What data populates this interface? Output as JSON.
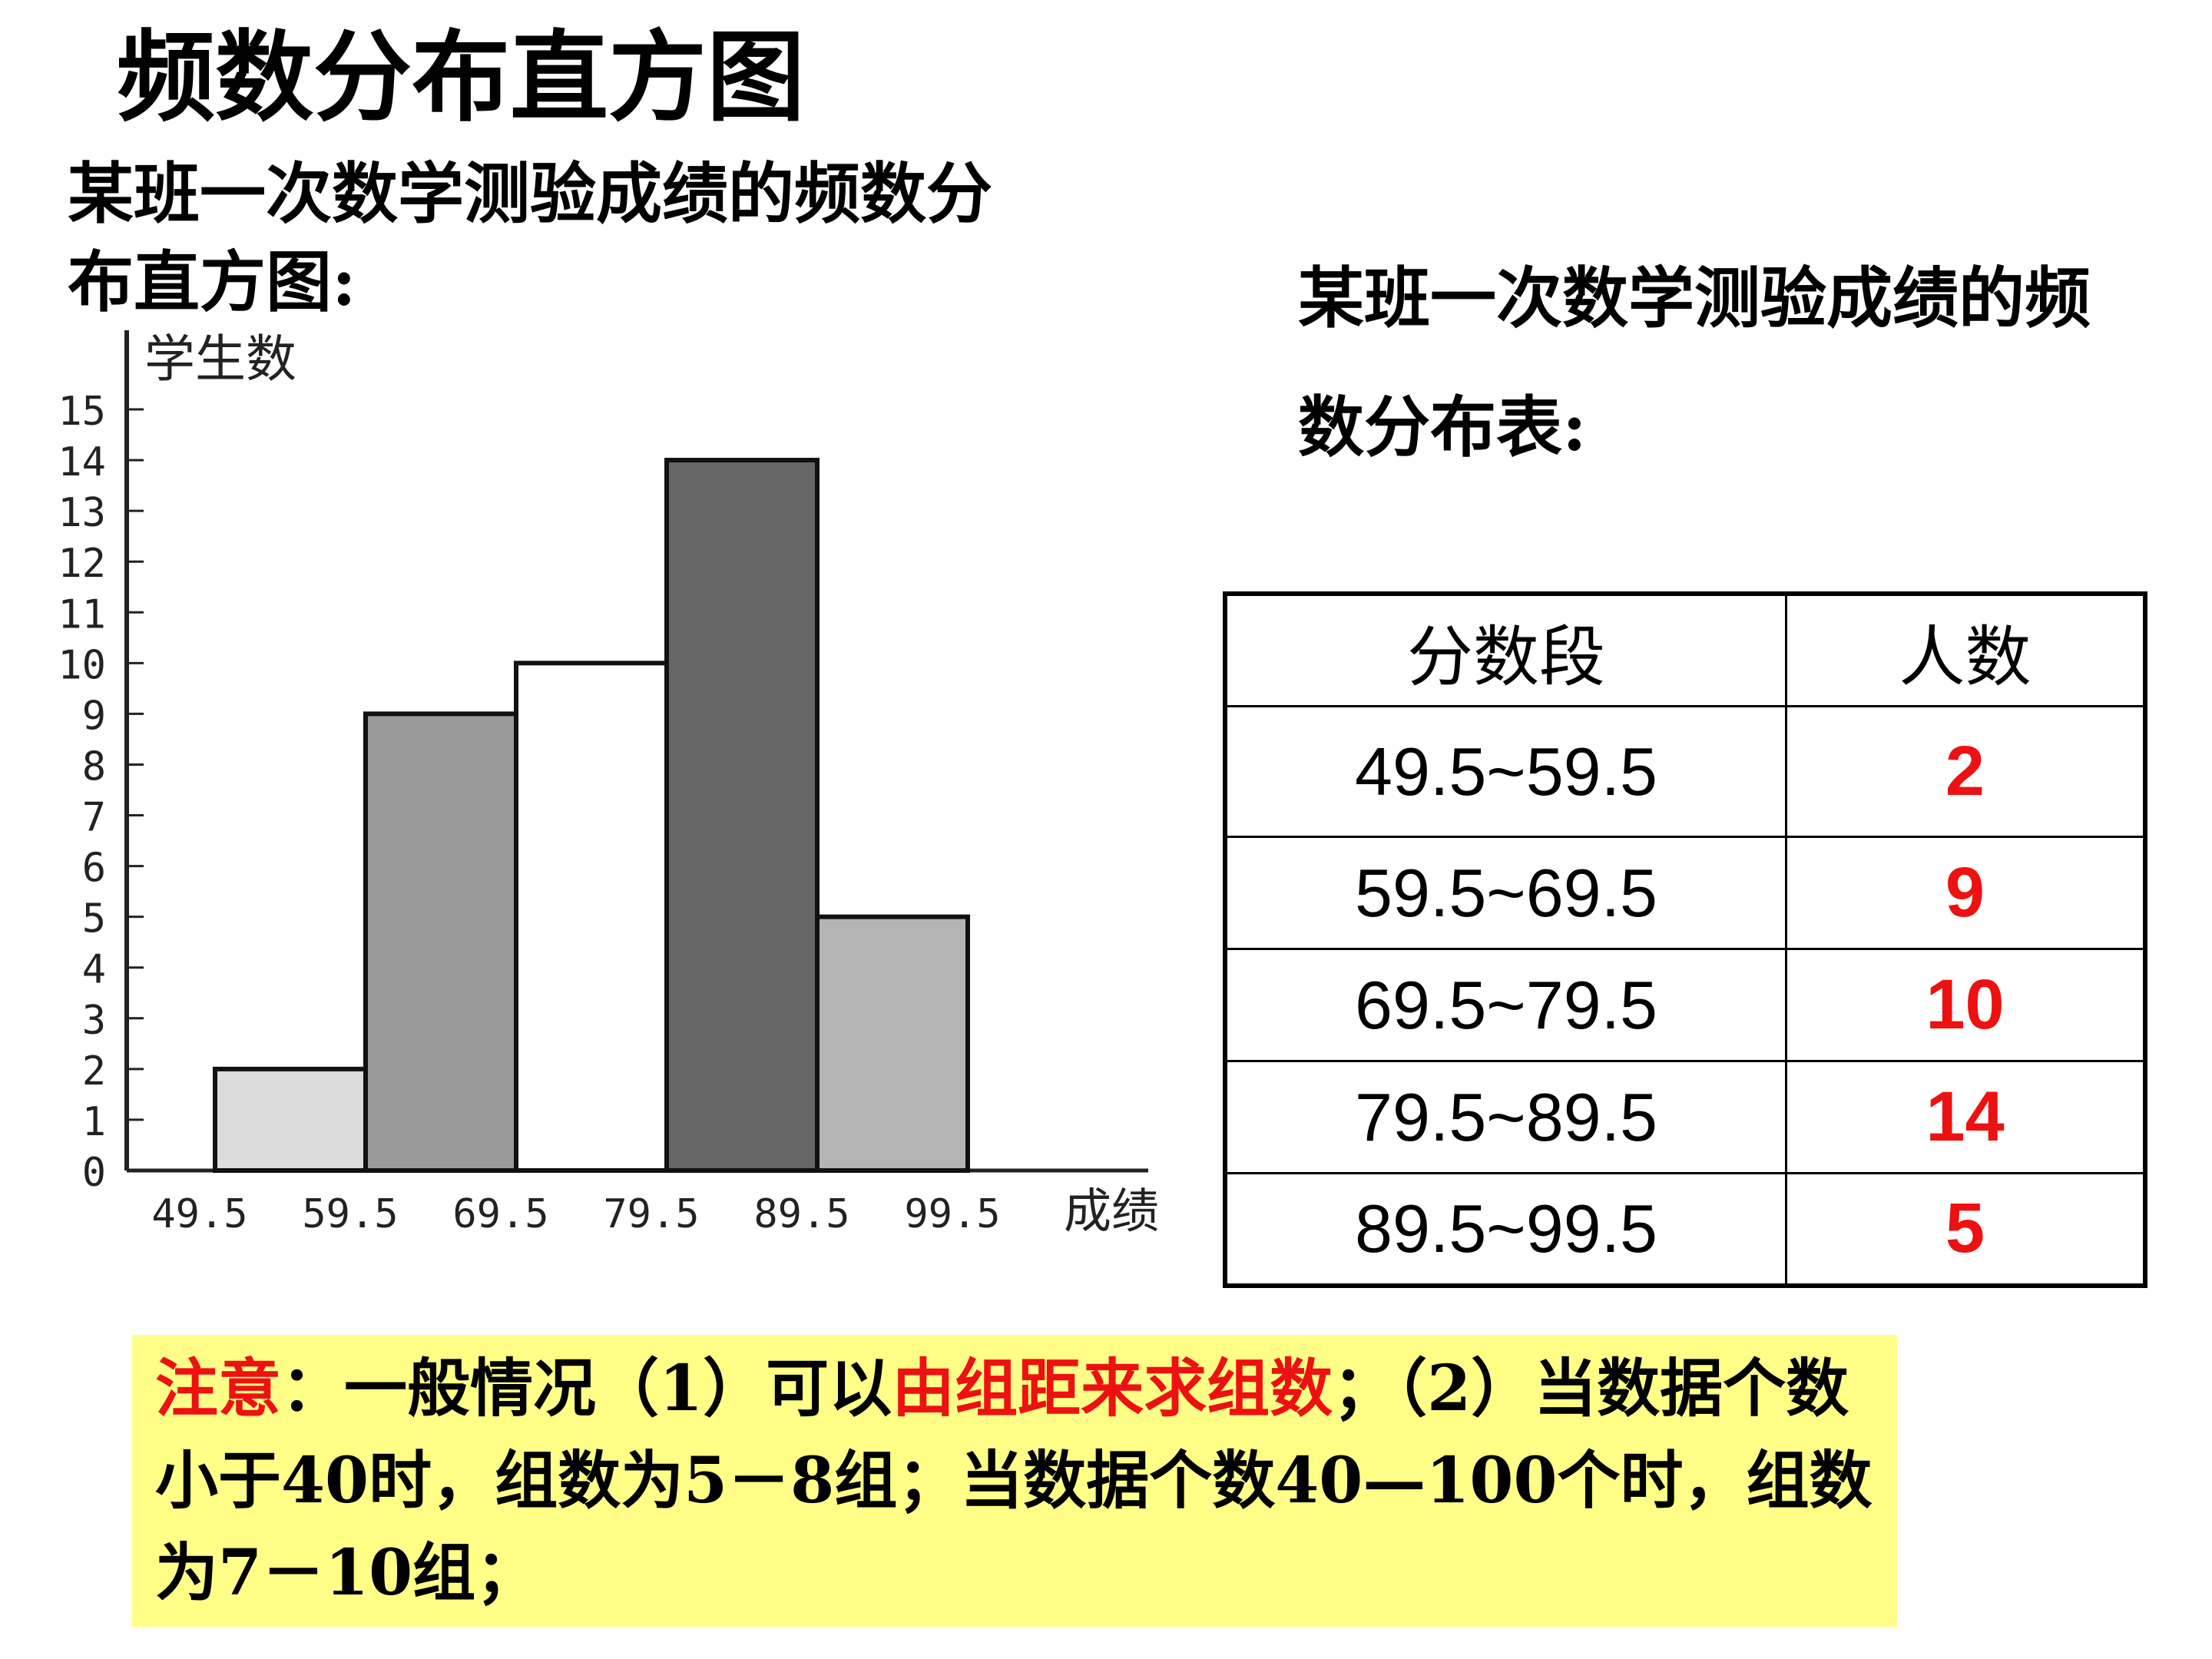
{
  "title": "频数分布直方图",
  "histogram_caption": "某班一次数学测验成绩的频数分布直方图:",
  "table_caption": "某班一次数学测验成绩的频数分布表:",
  "chart_data": {
    "type": "bar",
    "title": "",
    "ylabel": "学生数",
    "xlabel": "成绩",
    "ylim": [
      0,
      15
    ],
    "yticks": [
      "0",
      "1",
      "2",
      "3",
      "4",
      "5",
      "6",
      "7",
      "8",
      "9",
      "10",
      "11",
      "12",
      "13",
      "14",
      "15"
    ],
    "xticks": [
      "49.5",
      "59.5",
      "69.5",
      "79.5",
      "89.5",
      "99.5"
    ],
    "bins": [
      {
        "from": 49.5,
        "to": 59.5,
        "value": 2,
        "color": "#dcdcdc"
      },
      {
        "from": 59.5,
        "to": 69.5,
        "value": 9,
        "color": "#9a9a9a"
      },
      {
        "from": 69.5,
        "to": 79.5,
        "value": 10,
        "color": "#ffffff"
      },
      {
        "from": 79.5,
        "to": 89.5,
        "value": 14,
        "color": "#666666"
      },
      {
        "from": 89.5,
        "to": 99.5,
        "value": 5,
        "color": "#b4b4b4"
      }
    ]
  },
  "table": {
    "headers": [
      "分数段",
      "人数"
    ],
    "rows": [
      {
        "range": "49.5~59.5",
        "count": "2"
      },
      {
        "range": "59.5~69.5",
        "count": "9"
      },
      {
        "range": "69.5~79.5",
        "count": "10"
      },
      {
        "range": "79.5~89.5",
        "count": "14"
      },
      {
        "range": "89.5~99.5",
        "count": "5"
      }
    ]
  },
  "note": {
    "label": "注意",
    "part1": "：一般情况（1）可以",
    "highlight": "由组距来求组数",
    "part2": "；（2）当数据个数小于40时，组数为5－8组；当数据个数40—100个时，组数为7－10组；"
  },
  "colors": {
    "accent": "#ee1111",
    "note_background": "#ffff88"
  }
}
